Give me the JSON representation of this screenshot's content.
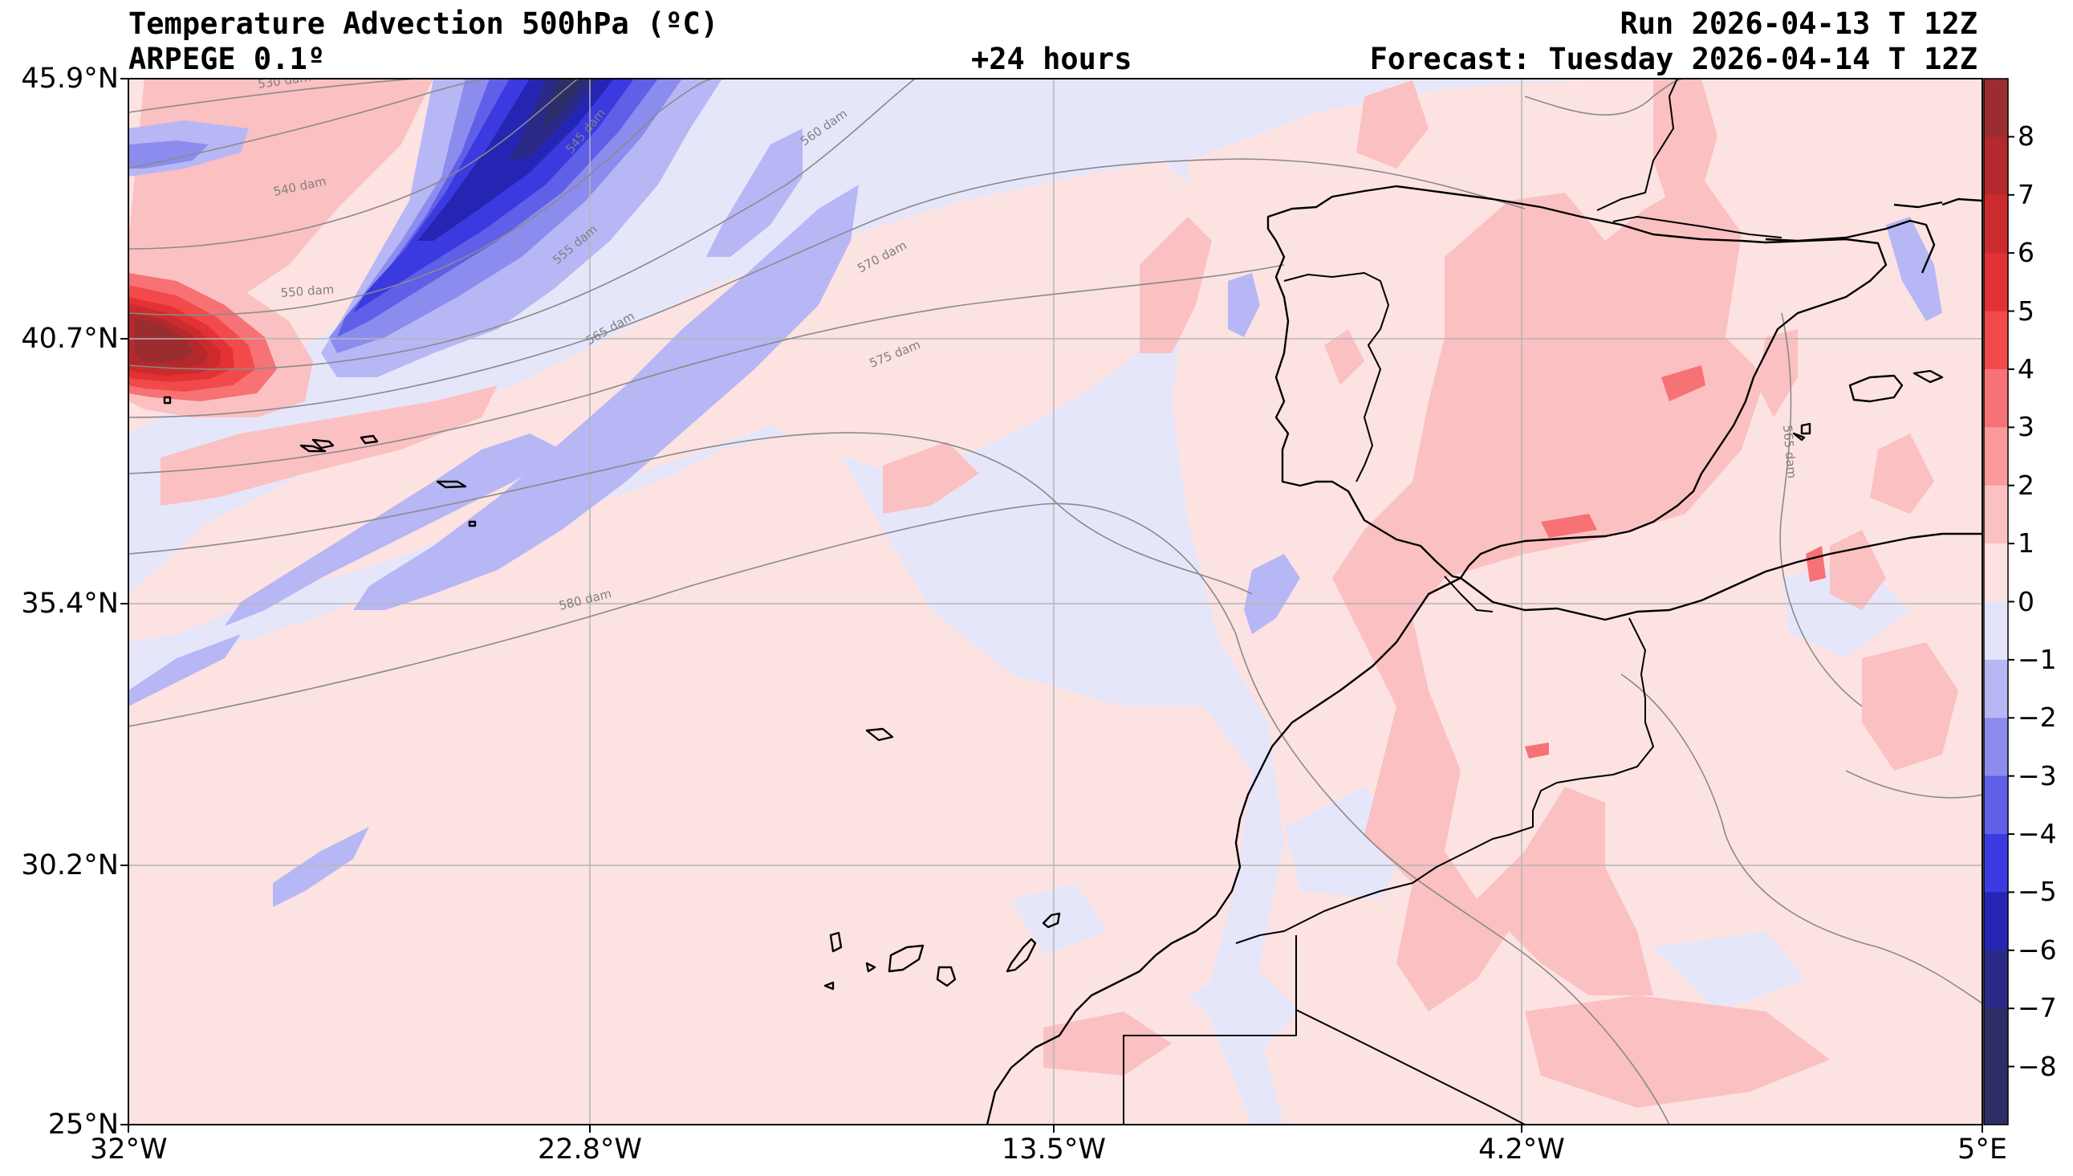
{
  "header": {
    "title": "Temperature Advection  500hPa (ºC)",
    "model": "ARPEGE 0.1º",
    "lead_time": "+24 hours",
    "run": "Run 2026-04-13 T 12Z",
    "forecast": "Forecast: Tuesday 2026-04-14 T 12Z"
  },
  "axes": {
    "lat_labels": [
      "45.9°N",
      "40.7°N",
      "35.4°N",
      "30.2°N",
      "25°N"
    ],
    "lon_labels": [
      "32°W",
      "22.8°W",
      "13.5°W",
      "4.2°W",
      "5°E"
    ]
  },
  "colorbar": {
    "labels": [
      "8",
      "7",
      "6",
      "5",
      "4",
      "3",
      "2",
      "1",
      "0",
      "−1",
      "−2",
      "−3",
      "−4",
      "−5",
      "−6",
      "−7",
      "−8"
    ],
    "colors": [
      "#9b2d30",
      "#b3292c",
      "#cc2b2e",
      "#e33234",
      "#f24a4b",
      "#f77274",
      "#fa9a9b",
      "#fbc0c1",
      "#fde2e2",
      "#e3e3fb",
      "#b7b7f5",
      "#8c8cef",
      "#5f5fe8",
      "#3a3ae0",
      "#2525b4",
      "#2a2a86",
      "#2e2e66"
    ]
  },
  "geopotential_labels": [
    "530 dam",
    "540 dam",
    "545 dam",
    "550 dam",
    "555 dam",
    "560 dam",
    "565 dam",
    "570 dam",
    "575 dam",
    "580 dam",
    "565 dam"
  ],
  "colors": {
    "background_zero": "#e6e6fb",
    "land_outline": "#000000",
    "gridline": "#b5b5b5",
    "contour": "#8a8a8a"
  }
}
